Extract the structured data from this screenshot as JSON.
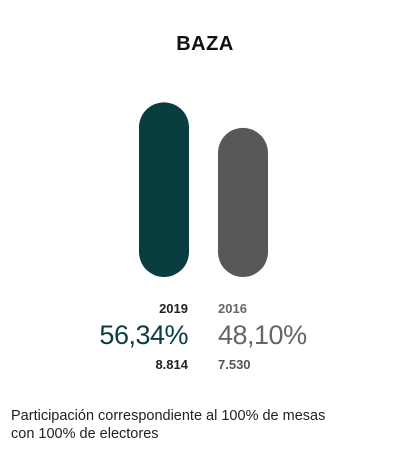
{
  "title": "BAZA",
  "footnote_line1": "Participación correspondiente al 100% de mesas",
  "footnote_line2": "con 100% de electores",
  "chart_data": {
    "type": "bar",
    "title": "BAZA",
    "categories": [
      "2019",
      "2016"
    ],
    "values": [
      56.34,
      48.1
    ],
    "value_labels": [
      "56,34%",
      "48,10%"
    ],
    "votes": [
      "8.814",
      "7.530"
    ],
    "colors": [
      "#0a3d40",
      "#585858"
    ],
    "ylim": [
      0,
      100
    ],
    "grid": false
  }
}
